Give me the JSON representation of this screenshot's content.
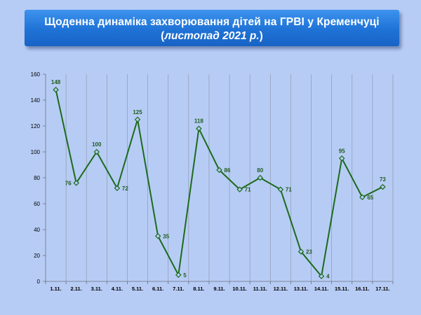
{
  "header": {
    "title_line1": "Щоденна динаміка захворювання дітей на ГРВІ у Кременчуці",
    "title_line2_open": "(",
    "title_line2_italic": "листопад 2021 р.",
    "title_line2_close": ")"
  },
  "chart_data": {
    "type": "line",
    "title": "",
    "xlabel": "",
    "ylabel": "",
    "categories": [
      "1.11.",
      "2.11.",
      "3.11.",
      "4.11.",
      "5.11.",
      "6.11.",
      "7.11.",
      "8.11.",
      "9.11.",
      "10.11.",
      "11.11.",
      "12.11.",
      "13.11.",
      "14.11.",
      "15.11.",
      "16.11.",
      "17.11."
    ],
    "series": [
      {
        "values": [
          148,
          76,
          100,
          72,
          125,
          35,
          5,
          118,
          86,
          71,
          80,
          71,
          23,
          4,
          95,
          65,
          73
        ],
        "color": "#1b6b1b",
        "marker": "diamond",
        "marker_fill": "#b7ccf5"
      }
    ],
    "ylim": [
      0,
      160
    ],
    "yticks": [
      0,
      20,
      40,
      60,
      80,
      100,
      120,
      140,
      160
    ],
    "grid": "vertical",
    "legend": "none",
    "data_labels": true
  }
}
